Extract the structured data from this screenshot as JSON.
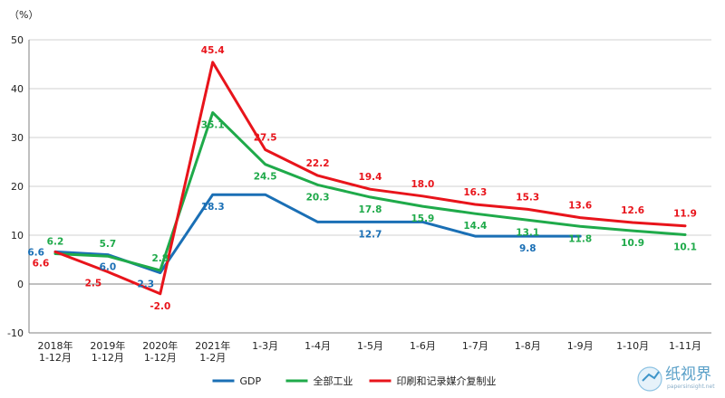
{
  "chart_data": {
    "type": "line",
    "unit_label": "（%）",
    "ylim": [
      -10,
      50
    ],
    "yticks": [
      -10,
      0,
      10,
      20,
      30,
      40,
      50
    ],
    "categories": [
      [
        "2018年",
        "1-12月"
      ],
      [
        "2019年",
        "1-12月"
      ],
      [
        "2020年",
        "1-12月"
      ],
      [
        "2021年",
        "1-2月"
      ],
      [
        "1-3月"
      ],
      [
        "1-4月"
      ],
      [
        "1-5月"
      ],
      [
        "1-6月"
      ],
      [
        "1-7月"
      ],
      [
        "1-8月"
      ],
      [
        "1-9月"
      ],
      [
        "1-10月"
      ],
      [
        "1-11月"
      ]
    ],
    "series": [
      {
        "name": "GDP",
        "color": "#1a6fb5",
        "values": [
          6.6,
          6.0,
          2.3,
          18.3,
          18.3,
          12.7,
          12.7,
          12.7,
          9.8,
          9.8,
          9.8,
          null,
          null
        ],
        "labels": [
          {
            "i": 0,
            "text": "6.6",
            "pos": "left"
          },
          {
            "i": 1,
            "text": "6.0",
            "pos": "below"
          },
          {
            "i": 2,
            "text": "2.3",
            "pos": "below-left"
          },
          {
            "i": 3,
            "text": "18.3",
            "pos": "below"
          },
          {
            "i": 6,
            "text": "12.7",
            "pos": "below"
          },
          {
            "i": 9,
            "text": "9.8",
            "pos": "below"
          }
        ]
      },
      {
        "name": "全部工业",
        "color": "#1faa4a",
        "values": [
          6.2,
          5.7,
          2.8,
          35.1,
          24.5,
          20.3,
          17.8,
          15.9,
          14.4,
          13.1,
          11.8,
          10.9,
          10.1
        ],
        "labels": [
          {
            "i": 0,
            "text": "6.2",
            "pos": "above"
          },
          {
            "i": 1,
            "text": "5.7",
            "pos": "above"
          },
          {
            "i": 2,
            "text": "2.8",
            "pos": "above"
          },
          {
            "i": 3,
            "text": "35.1",
            "pos": "below"
          },
          {
            "i": 4,
            "text": "24.5",
            "pos": "below"
          },
          {
            "i": 5,
            "text": "20.3",
            "pos": "below"
          },
          {
            "i": 6,
            "text": "17.8",
            "pos": "below"
          },
          {
            "i": 7,
            "text": "15.9",
            "pos": "below"
          },
          {
            "i": 8,
            "text": "14.4",
            "pos": "below"
          },
          {
            "i": 9,
            "text": "13.1",
            "pos": "below"
          },
          {
            "i": 10,
            "text": "11.8",
            "pos": "below"
          },
          {
            "i": 11,
            "text": "10.9",
            "pos": "below"
          },
          {
            "i": 12,
            "text": "10.1",
            "pos": "below"
          }
        ]
      },
      {
        "name": "印刷和记录媒介复制业",
        "color": "#e8141b",
        "values": [
          6.6,
          2.5,
          -2.0,
          45.4,
          27.5,
          22.2,
          19.4,
          18.0,
          16.3,
          15.3,
          13.6,
          12.6,
          11.9
        ],
        "labels": [
          {
            "i": 0,
            "text": "6.6",
            "pos": "below-left"
          },
          {
            "i": 1,
            "text": "2.5",
            "pos": "below-left"
          },
          {
            "i": 2,
            "text": "-2.0",
            "pos": "below"
          },
          {
            "i": 3,
            "text": "45.4",
            "pos": "above"
          },
          {
            "i": 4,
            "text": "27.5",
            "pos": "above"
          },
          {
            "i": 5,
            "text": "22.2",
            "pos": "above"
          },
          {
            "i": 6,
            "text": "19.4",
            "pos": "above"
          },
          {
            "i": 7,
            "text": "18.0",
            "pos": "above"
          },
          {
            "i": 8,
            "text": "16.3",
            "pos": "above"
          },
          {
            "i": 9,
            "text": "15.3",
            "pos": "above"
          },
          {
            "i": 10,
            "text": "13.6",
            "pos": "above"
          },
          {
            "i": 11,
            "text": "12.6",
            "pos": "above"
          },
          {
            "i": 12,
            "text": "11.9",
            "pos": "above"
          }
        ]
      }
    ],
    "grid": true,
    "legend": "bottom-center"
  },
  "watermark": {
    "text": "纸视界",
    "url": "papersinsight.net"
  }
}
